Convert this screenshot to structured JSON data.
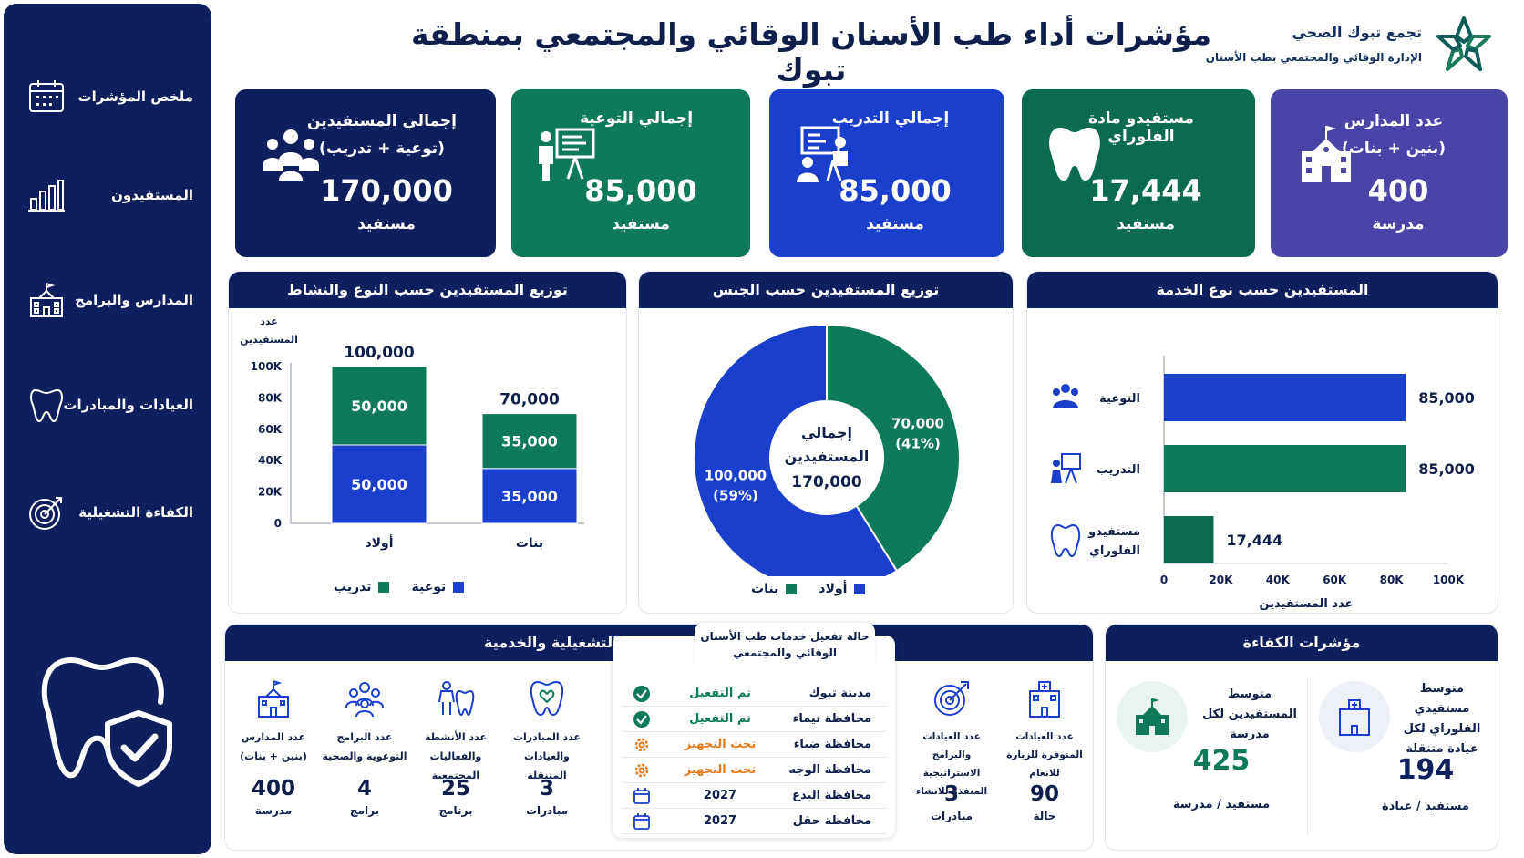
{
  "header": {
    "title": "مؤشرات أداء طب الأسنان الوقائي والمجتمعي بمنطقة تبوك",
    "brand_name": "تجمع تبوك الصحي",
    "brand_sub": "الإدارة الوقائي والمجتمعي بطب الأسنان"
  },
  "sidebar": {
    "items": [
      {
        "label": "ملخص المؤشرات",
        "icon": "calendar-icon"
      },
      {
        "label": "المستفيدون",
        "icon": "bar-chart-icon"
      },
      {
        "label": "المدارس والبرامج",
        "icon": "school-icon"
      },
      {
        "label": "العيادات والمبادرات",
        "icon": "tooth-icon"
      },
      {
        "label": "الكفاءة التشغيلية",
        "icon": "target-icon"
      }
    ]
  },
  "kpis": [
    {
      "title": "إجمالي المستفيدين",
      "subtitle": "(توعية + تدريب)",
      "value": "170,000",
      "unit": "مستفيد",
      "color": "#0d1f5c",
      "icon": "people-icon"
    },
    {
      "title": "إجمالي التوعية",
      "value": "85,000",
      "unit": "مستفيد",
      "color": "#0f7a5a",
      "icon": "presentation-icon"
    },
    {
      "title": "إجمالي التدريب",
      "value": "85,000",
      "unit": "مستفيد",
      "color": "#1a3fcc",
      "icon": "training-icon"
    },
    {
      "title": "مستفيدو مادة الفلوراي",
      "value": "17,444",
      "unit": "مستفيد",
      "color": "#0b6b4e",
      "icon": "tooth-icon"
    },
    {
      "title": "عدد المدارس",
      "subtitle": "(بنين + بنات)",
      "value": "400",
      "unit": "مدرسة",
      "color": "#4a43a8",
      "icon": "school-icon"
    }
  ],
  "panels": {
    "type_activity": "توزيع المستفيدين حسب النوع والنشاط",
    "gender": "توزيع المستفيدين حسب الجنس",
    "service": "المستفيدين حسب نوع الخدمة",
    "ops": "المؤشرات التشغيلية والخدمية",
    "efficiency": "مؤشرات الكفاءة"
  },
  "chart_data": [
    {
      "type": "bar",
      "stacked": true,
      "title": "توزيع المستفيدين حسب النوع والنشاط",
      "ylabel": "عدد المستفيدين",
      "ylabel_lines": [
        "عدد",
        "المستفيدين"
      ],
      "categories": [
        "أولاد",
        "بنات"
      ],
      "totals": [
        "100,000",
        "70,000"
      ],
      "series": [
        {
          "name": "توعية",
          "values": [
            50000,
            35000
          ],
          "labels": [
            "50,000",
            "35,000"
          ],
          "color": "#1a3fcc"
        },
        {
          "name": "تدريب",
          "values": [
            50000,
            35000
          ],
          "labels": [
            "50,000",
            "35,000"
          ],
          "color": "#0f7a5a"
        }
      ],
      "ylim": [
        0,
        100000
      ],
      "yticks": [
        "0",
        "20K",
        "40K",
        "60K",
        "80K",
        "100K"
      ],
      "ytick_values": [
        0,
        20000,
        40000,
        60000,
        80000,
        100000
      ],
      "legend": "bottom"
    },
    {
      "type": "pie",
      "donut": true,
      "title": "توزيع المستفيدين حسب الجنس",
      "center_label": [
        "إجمالي",
        "المستفيدين",
        "170,000"
      ],
      "slices": [
        {
          "name": "أولاد",
          "value": 100000,
          "label": "100,000",
          "pct": "(59%)",
          "color": "#1a3fcc"
        },
        {
          "name": "بنات",
          "value": 70000,
          "label": "70,000",
          "pct": "(41%)",
          "color": "#0f7a5a"
        }
      ],
      "legend": "bottom"
    },
    {
      "type": "bar",
      "orientation": "horizontal",
      "title": "المستفيدين حسب نوع الخدمة",
      "xlabel": "عدد المستفيدين",
      "categories": [
        "التوعية",
        "التدريب",
        "مستفيدو الفلوراي"
      ],
      "category_icons": [
        "people-icon",
        "training-icon",
        "tooth-icon"
      ],
      "values": [
        85000,
        85000,
        17444
      ],
      "labels": [
        "85,000",
        "85,000",
        "17,444"
      ],
      "colors": [
        "#1a3fcc",
        "#0f7a5a",
        "#0b6b4e"
      ],
      "xlim": [
        0,
        100000
      ],
      "xticks": [
        "0",
        "20K",
        "40K",
        "60K",
        "80K",
        "100K"
      ],
      "xtick_values": [
        0,
        20000,
        40000,
        60000,
        80000,
        100000
      ]
    }
  ],
  "ops": {
    "columns": [
      {
        "label": "عدد المدارس (بنين + بنات)",
        "value": "400",
        "unit": "مدرسة",
        "icon": "school-icon"
      },
      {
        "label": "عدد البرامج التوعوية والصحية",
        "value": "4",
        "unit": "برامج",
        "icon": "people-icon"
      },
      {
        "label": "عدد الأنشطة والفعاليات المجتمعية",
        "value": "25",
        "unit": "برنامج",
        "icon": "community-icon"
      },
      {
        "label": "عدد المبادرات والعيادات المتنقلة",
        "value": "3",
        "unit": "مبادرات",
        "icon": "tooth-heart-icon"
      },
      {
        "label": "عدد العيادات والبرامج الاستراتيجية المنفذة للانشاء",
        "value": "3",
        "unit": "مبادرات",
        "icon": "target-icon"
      },
      {
        "label": "عدد العيادات المتوفرة للزيارة للانعام",
        "value": "90",
        "unit": "حالة",
        "icon": "clinic-icon"
      }
    ],
    "status": {
      "title": "حالة تفعيل خدمات طب الأسنان الوقائي والمجتمعي",
      "rows": [
        {
          "city": "مدينة تبوك",
          "status": "تم التفعيل",
          "kind": "done",
          "color": "#0f7a5a"
        },
        {
          "city": "محافظة تيماء",
          "status": "تم التفعيل",
          "kind": "done",
          "color": "#0f7a5a"
        },
        {
          "city": "محافظة ضباء",
          "status": "تحت التجهيز",
          "kind": "progress",
          "color": "#e57b1a"
        },
        {
          "city": "محافظة الوجه",
          "status": "تحت التجهيز",
          "kind": "progress",
          "color": "#e57b1a"
        },
        {
          "city": "محافظة البدع",
          "status": "2027",
          "kind": "planned",
          "color": "#0f1f4b"
        },
        {
          "city": "محافظة حقل",
          "status": "2027",
          "kind": "planned",
          "color": "#0f1f4b"
        }
      ]
    }
  },
  "efficiency": [
    {
      "label": "متوسط مستفيدي الفلوراي لكل عيادة متنقلة",
      "value": "194",
      "unit": "مستفيد / عيادة",
      "color": "#0d1f5c",
      "icon": "clinic-icon"
    },
    {
      "label": "متوسط المستفيدين لكل مدرسة",
      "value": "425",
      "unit": "مستفيد / مدرسة",
      "color": "#0f7a5a",
      "icon": "school-icon"
    }
  ]
}
